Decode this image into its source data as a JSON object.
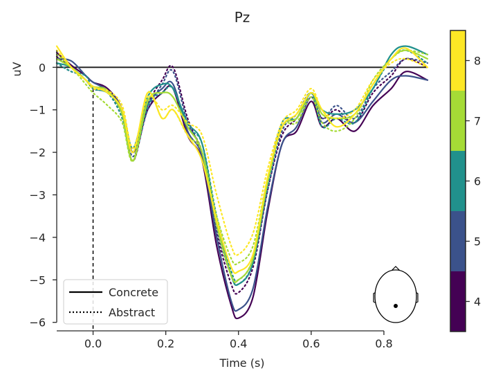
{
  "chart_data": {
    "type": "line",
    "title": "Pz",
    "xlabel": "Time (s)",
    "ylabel": "uV",
    "xlim": [
      -0.1,
      0.92
    ],
    "ylim": [
      -6.2,
      0.9
    ],
    "xticks": [
      0.0,
      0.2,
      0.4,
      0.6,
      0.8
    ],
    "xtick_labels": [
      "0.0",
      "0.2",
      "0.4",
      "0.6",
      "0.8"
    ],
    "yticks": [
      0,
      -1,
      -2,
      -3,
      -4,
      -5,
      -6
    ],
    "ytick_labels": [
      "0",
      "−1",
      "−2",
      "−3",
      "−4",
      "−5",
      "−6"
    ],
    "vline_x": 0.0,
    "hline_y": 0.0,
    "legend": {
      "location": "lower-left",
      "entries": [
        {
          "label": "Concrete",
          "linestyle": "solid"
        },
        {
          "label": "Abstract",
          "linestyle": "dotted"
        }
      ]
    },
    "colorbar": {
      "levels": [
        4,
        5,
        6,
        7,
        8
      ],
      "labels": [
        "4",
        "5",
        "6",
        "7",
        "8"
      ],
      "colors": [
        "#440154",
        "#3b528b",
        "#21918c",
        "#a5db36",
        "#fde725"
      ]
    },
    "sensor_inset": {
      "label": "Pz"
    },
    "x": [
      -0.1,
      -0.06,
      -0.02,
      0.0,
      0.04,
      0.08,
      0.11,
      0.15,
      0.19,
      0.22,
      0.26,
      0.3,
      0.34,
      0.38,
      0.4,
      0.44,
      0.48,
      0.52,
      0.56,
      0.6,
      0.63,
      0.67,
      0.72,
      0.77,
      0.82,
      0.86,
      0.92
    ],
    "series": [
      {
        "name": "Concrete 4",
        "level": 4,
        "style": "solid",
        "color": "#440154",
        "values": [
          0.35,
          0.05,
          -0.2,
          -0.35,
          -0.5,
          -1.0,
          -2.0,
          -1.0,
          -0.6,
          -0.5,
          -1.6,
          -2.2,
          -4.2,
          -5.6,
          -5.9,
          -5.4,
          -3.4,
          -1.8,
          -1.5,
          -0.8,
          -1.4,
          -1.2,
          -1.5,
          -0.9,
          -0.5,
          -0.1,
          -0.3
        ]
      },
      {
        "name": "Abstract 4",
        "level": 4,
        "style": "dotted",
        "color": "#440154",
        "values": [
          0.25,
          0.0,
          -0.3,
          -0.45,
          -0.55,
          -1.1,
          -2.2,
          -0.9,
          -0.3,
          0.0,
          -1.2,
          -2.1,
          -3.9,
          -5.1,
          -5.3,
          -4.7,
          -2.9,
          -1.6,
          -1.2,
          -0.7,
          -1.2,
          -1.0,
          -1.3,
          -0.6,
          -0.2,
          0.2,
          0.0
        ]
      },
      {
        "name": "Concrete 5",
        "level": 5,
        "style": "solid",
        "color": "#3b528b",
        "values": [
          0.2,
          0.15,
          -0.2,
          -0.35,
          -0.55,
          -1.0,
          -2.0,
          -0.9,
          -0.5,
          -0.4,
          -1.5,
          -2.1,
          -4.0,
          -5.5,
          -5.7,
          -5.2,
          -3.3,
          -1.8,
          -1.4,
          -0.7,
          -1.3,
          -1.1,
          -1.3,
          -0.8,
          -0.3,
          -0.2,
          -0.3
        ]
      },
      {
        "name": "Abstract 5",
        "level": 5,
        "style": "dotted",
        "color": "#3b528b",
        "values": [
          0.1,
          -0.1,
          -0.2,
          -0.5,
          -0.6,
          -1.1,
          -2.1,
          -1.0,
          -0.4,
          -0.1,
          -1.3,
          -2.0,
          -3.8,
          -4.9,
          -5.1,
          -4.6,
          -2.9,
          -1.5,
          -1.1,
          -0.6,
          -1.2,
          -0.9,
          -1.2,
          -0.5,
          -0.1,
          0.2,
          0.1
        ]
      },
      {
        "name": "Concrete 6",
        "level": 6,
        "style": "solid",
        "color": "#21918c",
        "values": [
          0.1,
          0.0,
          -0.3,
          -0.5,
          -0.6,
          -1.0,
          -1.9,
          -0.7,
          -0.4,
          -0.5,
          -1.3,
          -1.8,
          -3.6,
          -4.9,
          -5.1,
          -4.6,
          -2.7,
          -1.3,
          -1.2,
          -0.6,
          -1.0,
          -1.1,
          -1.0,
          -0.5,
          0.3,
          0.5,
          0.3
        ]
      },
      {
        "name": "Abstract 6",
        "level": 6,
        "style": "dotted",
        "color": "#21918c",
        "values": [
          0.1,
          -0.1,
          -0.2,
          -0.5,
          -0.6,
          -1.2,
          -2.2,
          -0.9,
          -0.6,
          -0.5,
          -1.4,
          -1.8,
          -3.5,
          -4.8,
          -5.0,
          -4.5,
          -2.8,
          -1.4,
          -1.2,
          -0.6,
          -1.4,
          -1.2,
          -1.3,
          -0.5,
          0.2,
          0.4,
          0.1
        ]
      },
      {
        "name": "Concrete 7",
        "level": 7,
        "style": "solid",
        "color": "#a5db36",
        "values": [
          0.2,
          0.0,
          -0.3,
          -0.45,
          -0.55,
          -1.1,
          -2.2,
          -0.8,
          -0.6,
          -0.7,
          -1.4,
          -2.0,
          -3.7,
          -4.9,
          -5.0,
          -4.5,
          -2.7,
          -1.4,
          -1.2,
          -0.6,
          -1.1,
          -1.2,
          -1.1,
          -0.4,
          0.2,
          0.4,
          0.2
        ]
      },
      {
        "name": "Abstract 7",
        "level": 7,
        "style": "dotted",
        "color": "#a5db36",
        "values": [
          0.3,
          0.0,
          -0.4,
          -0.6,
          -0.9,
          -1.3,
          -2.2,
          -0.6,
          -1.2,
          -1.0,
          -1.6,
          -2.0,
          -3.5,
          -4.5,
          -4.6,
          -4.2,
          -2.6,
          -1.4,
          -1.3,
          -0.7,
          -1.3,
          -1.5,
          -1.2,
          -0.3,
          0.2,
          0.4,
          0.3
        ]
      },
      {
        "name": "Concrete 8",
        "level": 8,
        "style": "solid",
        "color": "#fde725",
        "values": [
          0.5,
          0.0,
          -0.3,
          -0.45,
          -0.6,
          -1.0,
          -2.0,
          -0.6,
          -1.2,
          -1.0,
          -1.6,
          -2.2,
          -3.6,
          -4.7,
          -4.8,
          -4.4,
          -2.6,
          -1.4,
          -1.1,
          -0.6,
          -1.0,
          -1.4,
          -1.1,
          -0.4,
          0.2,
          0.45,
          0.0
        ]
      },
      {
        "name": "Abstract 8",
        "level": 8,
        "style": "dotted",
        "color": "#fde725",
        "values": [
          0.4,
          0.0,
          -0.3,
          -0.5,
          -0.55,
          -0.9,
          -1.9,
          -0.7,
          -1.0,
          -0.9,
          -1.3,
          -1.6,
          -3.0,
          -4.2,
          -4.4,
          -3.9,
          -2.4,
          -1.3,
          -1.0,
          -0.5,
          -1.0,
          -1.2,
          -1.0,
          -0.3,
          0.1,
          0.2,
          0.0
        ]
      }
    ]
  }
}
